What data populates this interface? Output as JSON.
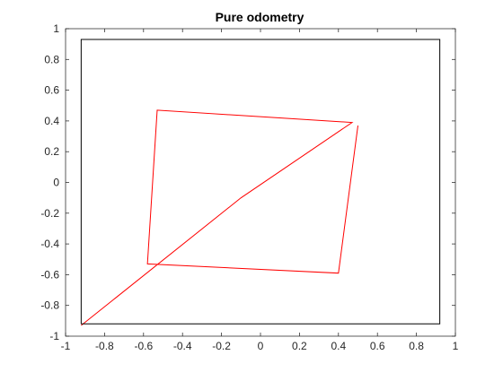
{
  "chart_data": {
    "type": "line",
    "title": "Pure odometry",
    "xlabel": "",
    "ylabel": "",
    "xlim": [
      -1,
      1
    ],
    "ylim": [
      -1,
      1
    ],
    "x_ticks": [
      -1,
      -0.8,
      -0.6,
      -0.4,
      -0.2,
      0,
      0.2,
      0.4,
      0.6,
      0.8,
      1
    ],
    "y_ticks": [
      -1,
      -0.8,
      -0.6,
      -0.4,
      -0.2,
      0,
      0.2,
      0.4,
      0.6,
      0.8,
      1
    ],
    "x_tick_labels": [
      "-1",
      "-0.8",
      "-0.6",
      "-0.4",
      "-0.2",
      "0",
      "0.2",
      "0.4",
      "0.6",
      "0.8",
      "1"
    ],
    "y_tick_labels": [
      "-1",
      "-0.8",
      "-0.6",
      "-0.4",
      "-0.2",
      "0",
      "0.2",
      "0.4",
      "0.6",
      "0.8",
      "1"
    ],
    "grid": false,
    "series": [
      {
        "color": "#ff0000",
        "x": [
          -0.92,
          -0.1,
          0.47,
          -0.53,
          -0.58,
          0.4,
          0.5
        ],
        "y": [
          -0.93,
          -0.1,
          0.39,
          0.47,
          -0.53,
          -0.59,
          0.37
        ]
      },
      {
        "color": "#000000",
        "x": [
          -0.92,
          0.92,
          0.92,
          -0.92,
          -0.92
        ],
        "y": [
          -0.92,
          -0.92,
          0.93,
          0.93,
          -0.92
        ]
      }
    ]
  }
}
